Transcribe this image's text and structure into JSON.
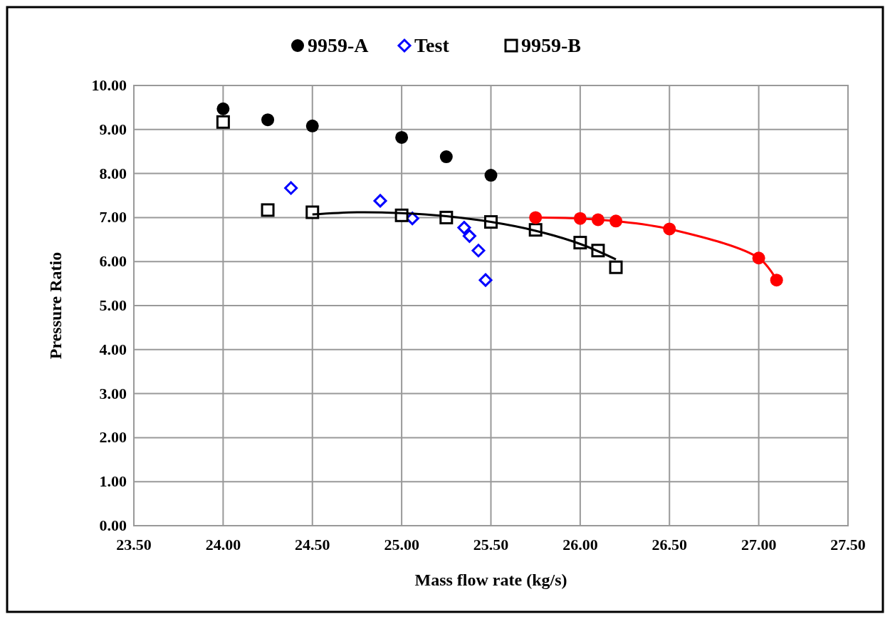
{
  "chart_data": {
    "type": "scatter",
    "xlabel": "Mass flow rate (kg/s)",
    "ylabel": "Pressure Ratio",
    "xlim": [
      23.5,
      27.5
    ],
    "xticks": [
      {
        "value": 23.5,
        "label": "23.50"
      },
      {
        "value": 24,
        "label": "24.00"
      },
      {
        "value": 24.5,
        "label": "24.50"
      },
      {
        "value": 25,
        "label": "25.00"
      },
      {
        "value": 25.5,
        "label": "25.50"
      },
      {
        "value": 26,
        "label": "26.00"
      },
      {
        "value": 26.5,
        "label": "26.50"
      },
      {
        "value": 27,
        "label": "27.00"
      },
      {
        "value": 27.5,
        "label": "27.50"
      }
    ],
    "ylim": [
      0,
      10
    ],
    "yticks": [
      {
        "value": 0,
        "label": "0.00"
      },
      {
        "value": 1,
        "label": "1.00"
      },
      {
        "value": 2,
        "label": "2.00"
      },
      {
        "value": 3,
        "label": "3.00"
      },
      {
        "value": 4,
        "label": "4.00"
      },
      {
        "value": 5,
        "label": "5.00"
      },
      {
        "value": 6,
        "label": "6.00"
      },
      {
        "value": 7,
        "label": "7.00"
      },
      {
        "value": 8,
        "label": "8.00"
      },
      {
        "value": 9,
        "label": "9.00"
      },
      {
        "value": 10,
        "label": "10.00"
      }
    ],
    "grid": true,
    "legend": "top",
    "series": [
      {
        "name": "9959-A",
        "color": "#000000",
        "marker": "circle",
        "x": [
          24,
          24.25,
          24.5,
          25,
          25.25,
          25.5
        ],
        "values": [
          9.47,
          9.22,
          9.08,
          8.82,
          8.38,
          7.96
        ]
      },
      {
        "name": "Test",
        "color": "#0000ff",
        "marker": "diamond",
        "x": [
          24.38,
          24.88,
          25.06,
          25.35,
          25.38,
          25.43,
          25.47
        ],
        "values": [
          7.67,
          7.38,
          6.98,
          6.77,
          6.58,
          6.25,
          5.58
        ]
      },
      {
        "name": "9959-B",
        "color": "#000000",
        "marker": "square",
        "x": [
          24,
          24.25,
          24.5,
          25,
          25.25,
          25.5,
          25.75,
          26,
          26.1,
          26.2
        ],
        "values": [
          9.17,
          7.17,
          7.12,
          7.05,
          7.0,
          6.9,
          6.72,
          6.43,
          6.25,
          5.87
        ]
      },
      {
        "type": "line",
        "color": "#000000",
        "marker": "none",
        "x": [
          24.5,
          24.75,
          25,
          25.25,
          25.5,
          25.75,
          26,
          26.2
        ],
        "values": [
          7.07,
          7.12,
          7.1,
          7.03,
          6.9,
          6.7,
          6.4,
          6.05
        ]
      },
      {
        "type": "line",
        "color": "#ff0000",
        "marker": "circle",
        "x": [
          25.75,
          26,
          26.1,
          26.2,
          26.5,
          27,
          27.1
        ],
        "values": [
          7.0,
          6.98,
          6.95,
          6.92,
          6.74,
          6.08,
          5.58
        ]
      }
    ]
  }
}
